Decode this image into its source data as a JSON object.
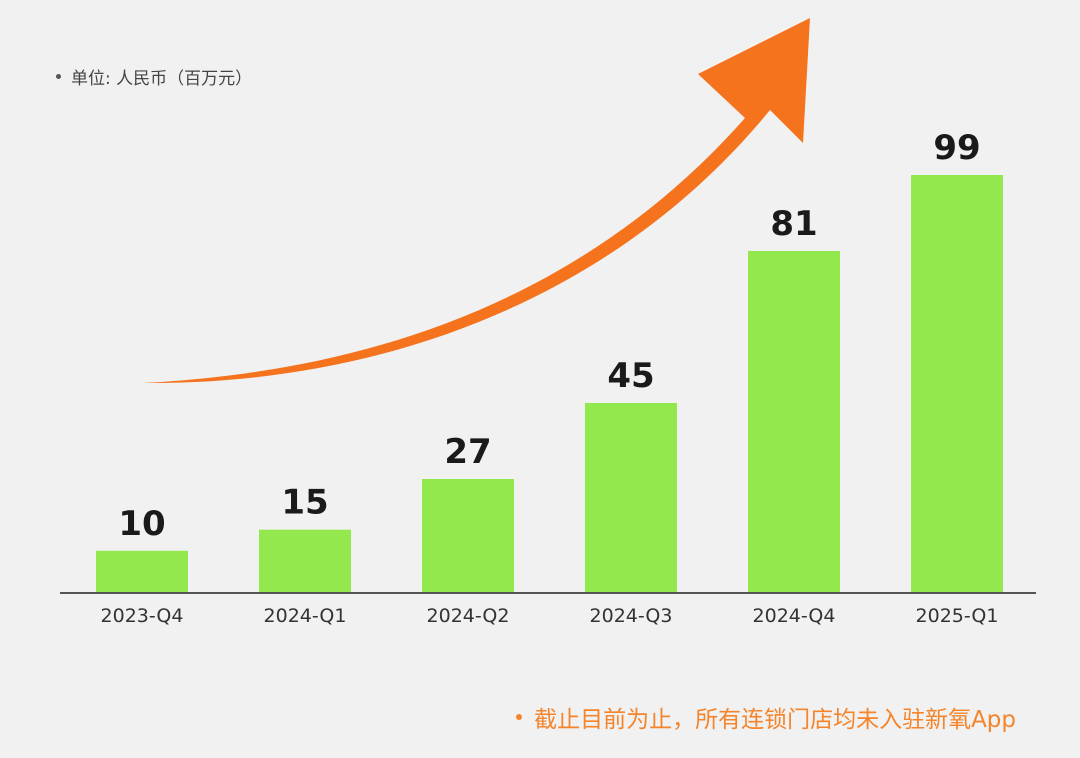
{
  "unit_note": "单位: 人民币（百万元）",
  "footnote": "截止目前为止，所有连锁门店均未入驻新氧App",
  "colors": {
    "bar": "#93e84e",
    "arrow": "#f5731d",
    "footnote": "#f5842a",
    "axis": "#555555",
    "background": "#f1f1f1"
  },
  "chart_data": {
    "type": "bar",
    "title": "",
    "xlabel": "",
    "ylabel": "",
    "categories": [
      "2023-Q4",
      "2024-Q1",
      "2024-Q2",
      "2024-Q3",
      "2024-Q4",
      "2025-Q1"
    ],
    "values": [
      10,
      15,
      27,
      45,
      81,
      99
    ],
    "data_labels": [
      "10",
      "15",
      "27",
      "45",
      "81",
      "99"
    ],
    "ylim": [
      0,
      99
    ],
    "grid": false,
    "legend": "none",
    "annotation": "upward-trend-arrow"
  }
}
